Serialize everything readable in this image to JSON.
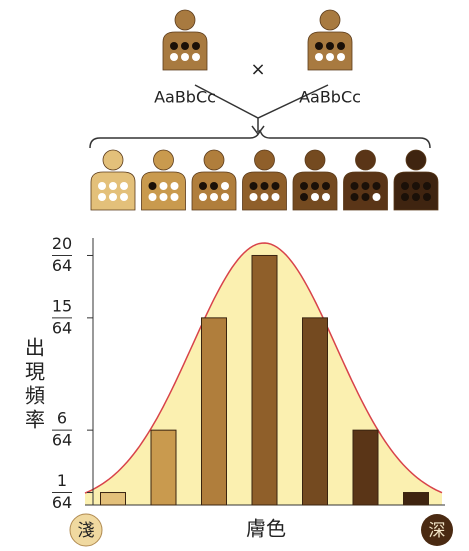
{
  "chart_data": {
    "type": "bar",
    "parents": [
      "AaBbCc",
      "AaBbCc"
    ],
    "cross_symbol": "×",
    "categories": [
      null,
      null,
      null,
      null,
      null,
      null,
      null
    ],
    "values": [
      1,
      6,
      15,
      20,
      15,
      6,
      1
    ],
    "colors": [
      "#e3c07a",
      "#c99a4e",
      "#b07e3c",
      "#8f5f2a",
      "#744a20",
      "#5a3517",
      "#3f2410"
    ],
    "ylim": [
      0,
      21
    ],
    "yticks": [
      {
        "value": 1,
        "label": "1"
      },
      {
        "value": 6,
        "label": "6"
      },
      {
        "value": 15,
        "label": "15"
      },
      {
        "value": 20,
        "label": "20"
      }
    ],
    "ytick_denominator": "64",
    "ylabel": "出現頻率",
    "xlabel": "膚色",
    "x_start": "淺",
    "x_end": "深"
  }
}
